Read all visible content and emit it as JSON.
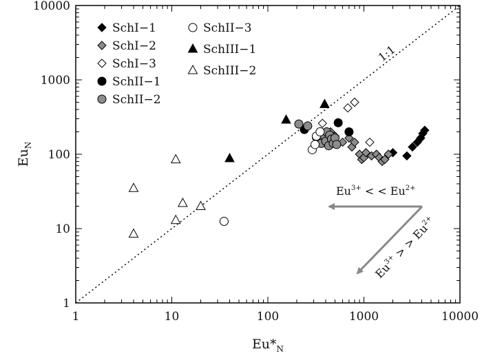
{
  "chart_data": {
    "type": "scatter",
    "title": "",
    "xlabel": "Eu*",
    "xlabel_sub": "N",
    "ylabel": "Eu",
    "ylabel_sub": "N",
    "x_scale": "log",
    "y_scale": "log",
    "xlim": [
      1,
      10000
    ],
    "ylim": [
      1,
      10000
    ],
    "x_ticks": [
      1,
      10,
      100,
      1000,
      10000
    ],
    "y_ticks": [
      1,
      10,
      100,
      1000,
      10000
    ],
    "x_tick_labels": [
      "1",
      "10",
      "100",
      "1000",
      "10000"
    ],
    "y_tick_labels": [
      "1",
      "10",
      "100",
      "1000",
      "10000"
    ],
    "grid": false,
    "legend_position": "top-left",
    "reference_line": {
      "label": "1:1",
      "style": "dotted",
      "from": [
        1,
        1
      ],
      "to": [
        10000,
        10000
      ]
    },
    "series": [
      {
        "name": "SchI−1",
        "marker": "diamond",
        "fill": "#000000",
        "points": [
          [
            2000,
            105
          ],
          [
            2800,
            95
          ],
          [
            3200,
            125
          ],
          [
            3600,
            145
          ],
          [
            3900,
            165
          ],
          [
            4100,
            190
          ],
          [
            4300,
            210
          ]
        ]
      },
      {
        "name": "SchI−2",
        "marker": "diamond",
        "fill": "#8c8c8c",
        "points": [
          [
            450,
            200
          ],
          [
            500,
            175
          ],
          [
            600,
            145
          ],
          [
            700,
            165
          ],
          [
            750,
            125
          ],
          [
            800,
            145
          ],
          [
            900,
            100
          ],
          [
            950,
            85
          ],
          [
            1000,
            90
          ],
          [
            1050,
            105
          ],
          [
            1200,
            95
          ],
          [
            1350,
            100
          ],
          [
            1450,
            90
          ],
          [
            1550,
            80
          ],
          [
            1650,
            85
          ],
          [
            1800,
            100
          ]
        ]
      },
      {
        "name": "SchI−3",
        "marker": "diamond",
        "fill": "#ffffff",
        "points": [
          [
            370,
            260
          ],
          [
            680,
            420
          ],
          [
            800,
            500
          ],
          [
            1150,
            145
          ]
        ]
      },
      {
        "name": "SchII−1",
        "marker": "circle",
        "fill": "#000000",
        "points": [
          [
            240,
            215
          ],
          [
            540,
            265
          ],
          [
            700,
            200
          ]
        ]
      },
      {
        "name": "SchII−2",
        "marker": "circle",
        "fill": "#8c8c8c",
        "points": [
          [
            210,
            255
          ],
          [
            260,
            240
          ],
          [
            320,
            170
          ],
          [
            340,
            150
          ],
          [
            360,
            140
          ],
          [
            380,
            180
          ],
          [
            400,
            150
          ],
          [
            410,
            200
          ],
          [
            430,
            130
          ],
          [
            440,
            180
          ],
          [
            460,
            160
          ],
          [
            480,
            140
          ],
          [
            500,
            165
          ],
          [
            520,
            135
          ]
        ]
      },
      {
        "name": "SchII−3",
        "marker": "circle",
        "fill": "#ffffff",
        "points": [
          [
            290,
            115
          ],
          [
            310,
            135
          ],
          [
            320,
            175
          ],
          [
            350,
            200
          ],
          [
            35,
            12.5
          ]
        ]
      },
      {
        "name": "SchIII−1",
        "marker": "triangle",
        "fill": "#000000",
        "points": [
          [
            155,
            290
          ],
          [
            390,
            470
          ],
          [
            40,
            88
          ]
        ]
      },
      {
        "name": "SchIII−2",
        "marker": "triangle",
        "fill": "#ffffff",
        "points": [
          [
            4,
            35
          ],
          [
            4,
            8.5
          ],
          [
            11,
            85
          ],
          [
            11,
            13
          ],
          [
            13,
            22
          ],
          [
            20,
            20
          ]
        ]
      }
    ],
    "annotations": {
      "arrow_upper_label": {
        "base": "Eu",
        "sup1": "3+",
        "mid": " < < Eu",
        "sup2": "2+"
      },
      "arrow_lower_label": {
        "base": "Eu",
        "sup1": "3+",
        "mid": " > > Eu",
        "sup2": "2+"
      },
      "arrow_color": "#888888"
    }
  }
}
